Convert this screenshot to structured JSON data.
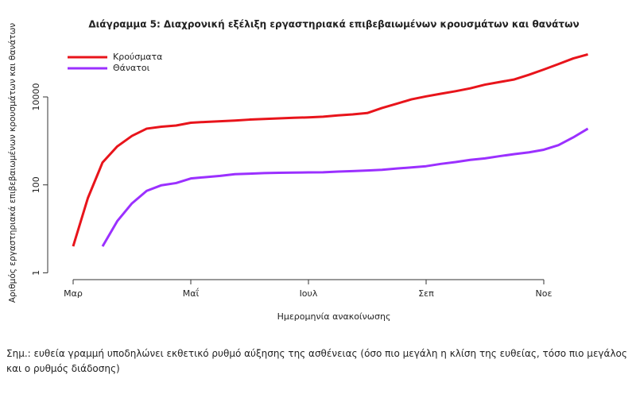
{
  "chart_data": {
    "type": "line",
    "title": "Διάγραμμα 5: Διαχρονική εξέλιξη εργαστηριακά επιβεβαιωμένων κρουσμάτων και θανάτων",
    "x_label": "Ημερομηνία ανακοίνωσης",
    "y_label": "Αριθμός εργαστηριακά επιβεβαιωμένων κρουσμάτων και θανάτων",
    "note": "Σημ.: ευθεία γραμμή υποδηλώνει εκθετικό ρυθμό αύξησης της ασθένειας (όσο πιο μεγάλη η κλίση της ευθείας, τόσο πιο μεγάλος και ο ρυθμός διάδοσης)",
    "categories": [
      "Μαρ",
      null,
      null,
      null,
      null,
      null,
      null,
      null,
      "Μαΐ",
      null,
      null,
      null,
      null,
      null,
      null,
      null,
      "Ιουλ",
      null,
      null,
      null,
      null,
      null,
      null,
      null,
      "Σεπ",
      null,
      null,
      null,
      null,
      null,
      null,
      null,
      "Νοε",
      null,
      null,
      null
    ],
    "log_y": true,
    "ylim": [
      0.7,
      200000
    ],
    "yticks": [
      1,
      100,
      10000
    ],
    "legend": "top-left",
    "series": [
      {
        "name": "Κρούσματα",
        "color": "#e8141b",
        "values": [
          4,
          50,
          324,
          750,
          1300,
          1900,
          2100,
          2235,
          2591,
          2700,
          2800,
          2900,
          3050,
          3150,
          3250,
          3350,
          3432,
          3560,
          3800,
          4000,
          4300,
          5600,
          7000,
          8800,
          10300,
          11800,
          13500,
          15700,
          19000,
          21800,
          25000,
          32000,
          42000,
          56000,
          75000,
          93000
        ]
      },
      {
        "name": "Θάνατοι",
        "color": "#9b30ff",
        "values": [
          null,
          null,
          4,
          15,
          38,
          73,
          98,
          110,
          140,
          150,
          160,
          175,
          180,
          185,
          188,
          190,
          192,
          193,
          200,
          206,
          212,
          220,
          235,
          250,
          266,
          300,
          330,
          370,
          400,
          450,
          500,
          550,
          630,
          800,
          1200,
          1900
        ]
      }
    ]
  }
}
